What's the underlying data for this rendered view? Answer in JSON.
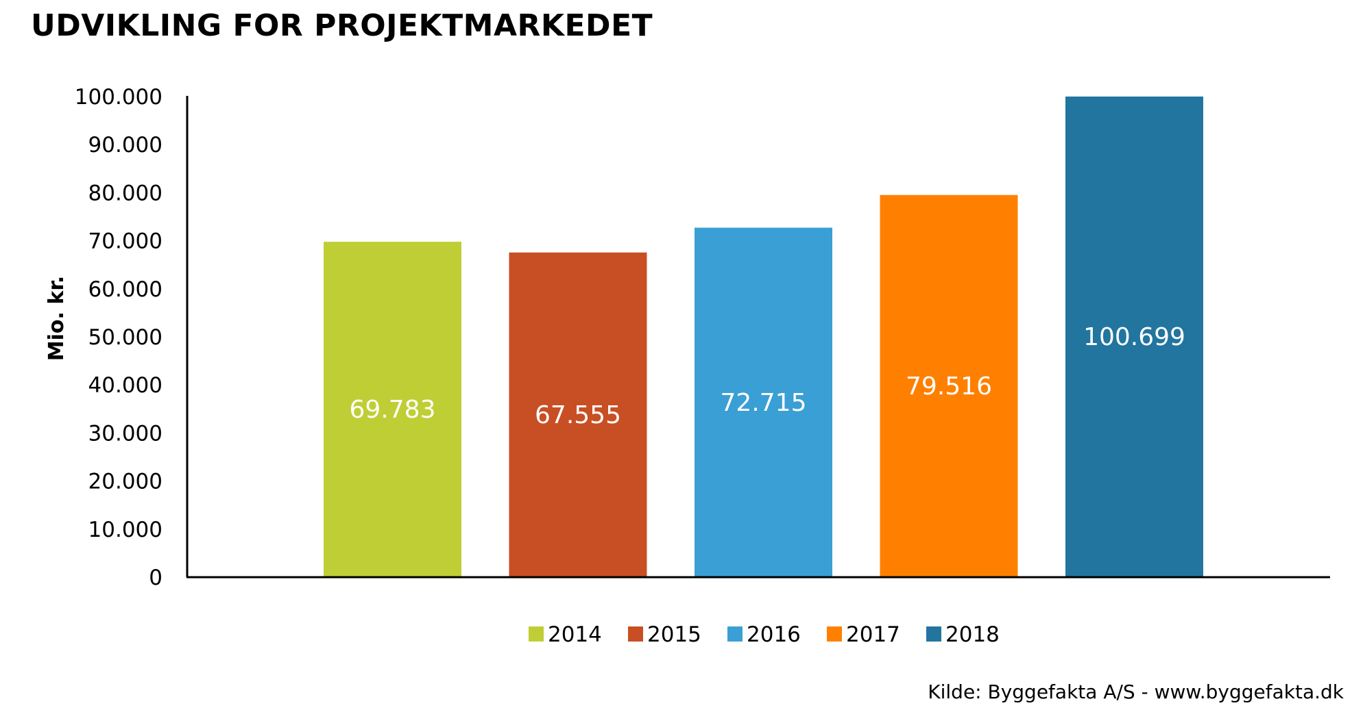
{
  "chart_data": {
    "type": "bar",
    "title": "UDVIKLING FOR PROJEKTMARKEDET",
    "ylabel": "Mio. kr.",
    "xlabel": "",
    "ylim": [
      0,
      100000
    ],
    "yticks": [
      {
        "value": 0,
        "label": "0"
      },
      {
        "value": 10000,
        "label": "10.000"
      },
      {
        "value": 20000,
        "label": "20.000"
      },
      {
        "value": 30000,
        "label": "30.000"
      },
      {
        "value": 40000,
        "label": "40.000"
      },
      {
        "value": 50000,
        "label": "50.000"
      },
      {
        "value": 60000,
        "label": "60.000"
      },
      {
        "value": 70000,
        "label": "70.000"
      },
      {
        "value": 80000,
        "label": "80.000"
      },
      {
        "value": 90000,
        "label": "90.000"
      },
      {
        "value": 100000,
        "label": "100.000"
      }
    ],
    "grid": false,
    "legend_position": "bottom-center",
    "series": [
      {
        "name": "2014",
        "value": 69783,
        "label": "69.783",
        "color": "#BFCE35"
      },
      {
        "name": "2015",
        "value": 67555,
        "label": "67.555",
        "color": "#C84F24"
      },
      {
        "name": "2016",
        "value": 72715,
        "label": "72.715",
        "color": "#3A9FD4"
      },
      {
        "name": "2017",
        "value": 79516,
        "label": "79.516",
        "color": "#FF8000"
      },
      {
        "name": "2018",
        "value": 100699,
        "label": "100.699",
        "color": "#22759F"
      }
    ]
  },
  "source": "Kilde: Byggefakta A/S - www.byggefakta.dk"
}
